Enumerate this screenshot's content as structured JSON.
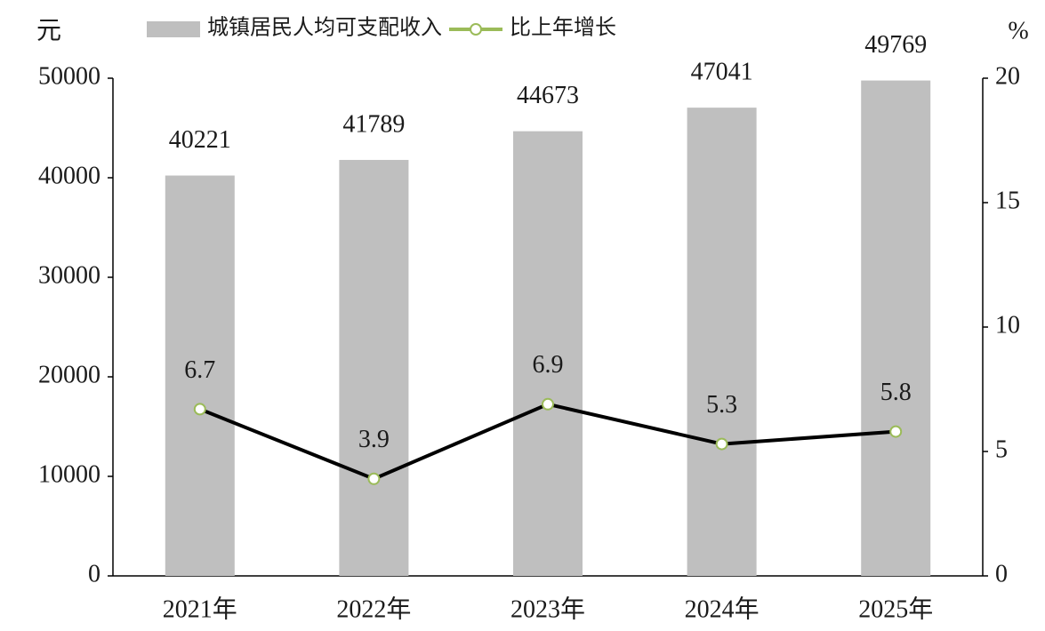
{
  "chart_data": {
    "type": "bar_line",
    "y_label": "元",
    "y2_label": "%",
    "categories": [
      "2021年",
      "2022年",
      "2023年",
      "2024年",
      "2025年"
    ],
    "series": [
      {
        "name": "城镇居民人均可支配收入",
        "type": "bar",
        "color": "#bfbfbf",
        "values": [
          40221,
          41789,
          44673,
          47041,
          49769
        ]
      },
      {
        "name": "比上年增长",
        "type": "line",
        "axis": "y2",
        "color": "#000000",
        "marker_color": "#9bbb59",
        "values": [
          6.7,
          3.9,
          6.9,
          5.3,
          5.8
        ]
      }
    ],
    "ylim": [
      0,
      50000
    ],
    "yticks": [
      0,
      10000,
      20000,
      30000,
      40000,
      50000
    ],
    "y2lim": [
      0,
      20
    ],
    "y2ticks": [
      0,
      5,
      10,
      15,
      20
    ],
    "grid": false
  }
}
